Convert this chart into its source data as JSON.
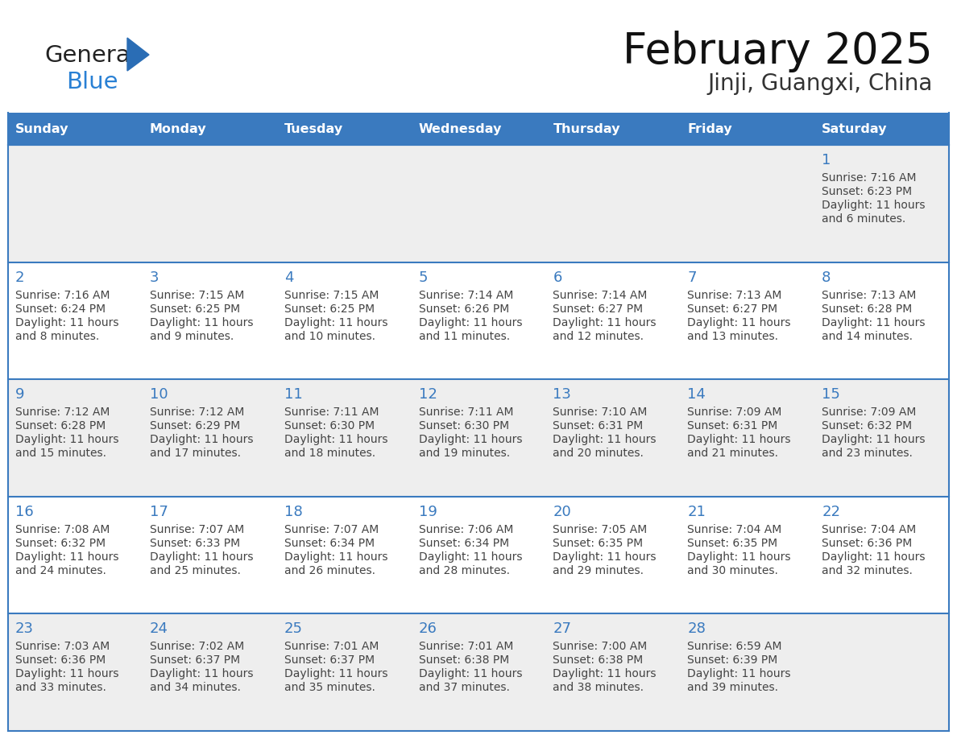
{
  "title": "February 2025",
  "subtitle": "Jinji, Guangxi, China",
  "days_of_week": [
    "Sunday",
    "Monday",
    "Tuesday",
    "Wednesday",
    "Thursday",
    "Friday",
    "Saturday"
  ],
  "header_bg": "#3a7abf",
  "header_text_color": "#ffffff",
  "cell_bg_row0": "#eeeeee",
  "cell_bg_row1": "#ffffff",
  "cell_border_color": "#3a7abf",
  "day_number_color": "#3a7abf",
  "text_color": "#444444",
  "logo_general_color": "#222222",
  "logo_blue_color": "#2980d4",
  "logo_tri_color": "#2a6db5",
  "title_color": "#111111",
  "subtitle_color": "#333333",
  "calendar_data": [
    {
      "day": 1,
      "col": 6,
      "row": 0,
      "sunrise": "7:16 AM",
      "sunset": "6:23 PM",
      "daylight_line1": "Daylight: 11 hours",
      "daylight_line2": "and 6 minutes."
    },
    {
      "day": 2,
      "col": 0,
      "row": 1,
      "sunrise": "7:16 AM",
      "sunset": "6:24 PM",
      "daylight_line1": "Daylight: 11 hours",
      "daylight_line2": "and 8 minutes."
    },
    {
      "day": 3,
      "col": 1,
      "row": 1,
      "sunrise": "7:15 AM",
      "sunset": "6:25 PM",
      "daylight_line1": "Daylight: 11 hours",
      "daylight_line2": "and 9 minutes."
    },
    {
      "day": 4,
      "col": 2,
      "row": 1,
      "sunrise": "7:15 AM",
      "sunset": "6:25 PM",
      "daylight_line1": "Daylight: 11 hours",
      "daylight_line2": "and 10 minutes."
    },
    {
      "day": 5,
      "col": 3,
      "row": 1,
      "sunrise": "7:14 AM",
      "sunset": "6:26 PM",
      "daylight_line1": "Daylight: 11 hours",
      "daylight_line2": "and 11 minutes."
    },
    {
      "day": 6,
      "col": 4,
      "row": 1,
      "sunrise": "7:14 AM",
      "sunset": "6:27 PM",
      "daylight_line1": "Daylight: 11 hours",
      "daylight_line2": "and 12 minutes."
    },
    {
      "day": 7,
      "col": 5,
      "row": 1,
      "sunrise": "7:13 AM",
      "sunset": "6:27 PM",
      "daylight_line1": "Daylight: 11 hours",
      "daylight_line2": "and 13 minutes."
    },
    {
      "day": 8,
      "col": 6,
      "row": 1,
      "sunrise": "7:13 AM",
      "sunset": "6:28 PM",
      "daylight_line1": "Daylight: 11 hours",
      "daylight_line2": "and 14 minutes."
    },
    {
      "day": 9,
      "col": 0,
      "row": 2,
      "sunrise": "7:12 AM",
      "sunset": "6:28 PM",
      "daylight_line1": "Daylight: 11 hours",
      "daylight_line2": "and 15 minutes."
    },
    {
      "day": 10,
      "col": 1,
      "row": 2,
      "sunrise": "7:12 AM",
      "sunset": "6:29 PM",
      "daylight_line1": "Daylight: 11 hours",
      "daylight_line2": "and 17 minutes."
    },
    {
      "day": 11,
      "col": 2,
      "row": 2,
      "sunrise": "7:11 AM",
      "sunset": "6:30 PM",
      "daylight_line1": "Daylight: 11 hours",
      "daylight_line2": "and 18 minutes."
    },
    {
      "day": 12,
      "col": 3,
      "row": 2,
      "sunrise": "7:11 AM",
      "sunset": "6:30 PM",
      "daylight_line1": "Daylight: 11 hours",
      "daylight_line2": "and 19 minutes."
    },
    {
      "day": 13,
      "col": 4,
      "row": 2,
      "sunrise": "7:10 AM",
      "sunset": "6:31 PM",
      "daylight_line1": "Daylight: 11 hours",
      "daylight_line2": "and 20 minutes."
    },
    {
      "day": 14,
      "col": 5,
      "row": 2,
      "sunrise": "7:09 AM",
      "sunset": "6:31 PM",
      "daylight_line1": "Daylight: 11 hours",
      "daylight_line2": "and 21 minutes."
    },
    {
      "day": 15,
      "col": 6,
      "row": 2,
      "sunrise": "7:09 AM",
      "sunset": "6:32 PM",
      "daylight_line1": "Daylight: 11 hours",
      "daylight_line2": "and 23 minutes."
    },
    {
      "day": 16,
      "col": 0,
      "row": 3,
      "sunrise": "7:08 AM",
      "sunset": "6:32 PM",
      "daylight_line1": "Daylight: 11 hours",
      "daylight_line2": "and 24 minutes."
    },
    {
      "day": 17,
      "col": 1,
      "row": 3,
      "sunrise": "7:07 AM",
      "sunset": "6:33 PM",
      "daylight_line1": "Daylight: 11 hours",
      "daylight_line2": "and 25 minutes."
    },
    {
      "day": 18,
      "col": 2,
      "row": 3,
      "sunrise": "7:07 AM",
      "sunset": "6:34 PM",
      "daylight_line1": "Daylight: 11 hours",
      "daylight_line2": "and 26 minutes."
    },
    {
      "day": 19,
      "col": 3,
      "row": 3,
      "sunrise": "7:06 AM",
      "sunset": "6:34 PM",
      "daylight_line1": "Daylight: 11 hours",
      "daylight_line2": "and 28 minutes."
    },
    {
      "day": 20,
      "col": 4,
      "row": 3,
      "sunrise": "7:05 AM",
      "sunset": "6:35 PM",
      "daylight_line1": "Daylight: 11 hours",
      "daylight_line2": "and 29 minutes."
    },
    {
      "day": 21,
      "col": 5,
      "row": 3,
      "sunrise": "7:04 AM",
      "sunset": "6:35 PM",
      "daylight_line1": "Daylight: 11 hours",
      "daylight_line2": "and 30 minutes."
    },
    {
      "day": 22,
      "col": 6,
      "row": 3,
      "sunrise": "7:04 AM",
      "sunset": "6:36 PM",
      "daylight_line1": "Daylight: 11 hours",
      "daylight_line2": "and 32 minutes."
    },
    {
      "day": 23,
      "col": 0,
      "row": 4,
      "sunrise": "7:03 AM",
      "sunset": "6:36 PM",
      "daylight_line1": "Daylight: 11 hours",
      "daylight_line2": "and 33 minutes."
    },
    {
      "day": 24,
      "col": 1,
      "row": 4,
      "sunrise": "7:02 AM",
      "sunset": "6:37 PM",
      "daylight_line1": "Daylight: 11 hours",
      "daylight_line2": "and 34 minutes."
    },
    {
      "day": 25,
      "col": 2,
      "row": 4,
      "sunrise": "7:01 AM",
      "sunset": "6:37 PM",
      "daylight_line1": "Daylight: 11 hours",
      "daylight_line2": "and 35 minutes."
    },
    {
      "day": 26,
      "col": 3,
      "row": 4,
      "sunrise": "7:01 AM",
      "sunset": "6:38 PM",
      "daylight_line1": "Daylight: 11 hours",
      "daylight_line2": "and 37 minutes."
    },
    {
      "day": 27,
      "col": 4,
      "row": 4,
      "sunrise": "7:00 AM",
      "sunset": "6:38 PM",
      "daylight_line1": "Daylight: 11 hours",
      "daylight_line2": "and 38 minutes."
    },
    {
      "day": 28,
      "col": 5,
      "row": 4,
      "sunrise": "6:59 AM",
      "sunset": "6:39 PM",
      "daylight_line1": "Daylight: 11 hours",
      "daylight_line2": "and 39 minutes."
    }
  ]
}
